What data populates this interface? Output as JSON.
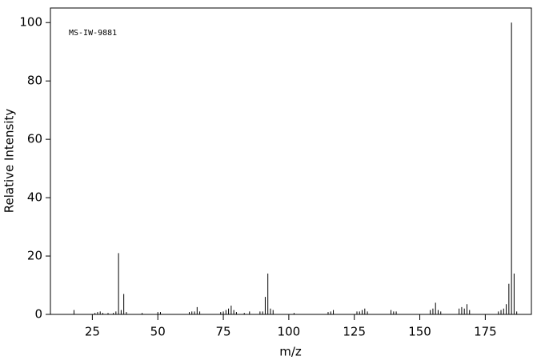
{
  "chart_data": {
    "type": "stick",
    "annotation": "MS-IW-9881",
    "xlabel": "m/z",
    "ylabel": "Relative Intensity",
    "xlim": [
      9,
      192.6
    ],
    "ylim": [
      0,
      105
    ],
    "xticks": [
      25,
      50,
      75,
      100,
      125,
      150,
      175
    ],
    "yticks": [
      0,
      20,
      40,
      60,
      80,
      100
    ],
    "color": "#000000",
    "x": [
      18,
      26,
      27,
      28,
      29,
      31,
      33,
      34,
      35,
      36,
      37,
      38,
      44,
      50,
      51,
      62,
      63,
      64,
      65,
      66,
      74,
      75,
      76,
      77,
      78,
      79,
      80,
      83,
      85,
      89,
      90,
      91,
      92,
      93,
      94,
      102,
      115,
      116,
      117,
      126,
      127,
      128,
      129,
      130,
      139,
      140,
      141,
      154,
      155,
      156,
      157,
      158,
      165,
      166,
      167,
      168,
      169,
      180,
      181,
      182,
      183,
      184,
      185,
      186,
      187
    ],
    "values": [
      1.5,
      0.5,
      0.8,
      1,
      0.5,
      0.5,
      0.5,
      1,
      21,
      1.5,
      7,
      0.8,
      0.5,
      0.8,
      0.8,
      0.8,
      1,
      1,
      2.5,
      1,
      0.8,
      1,
      1.5,
      2,
      3,
      1.5,
      0.8,
      0.5,
      1,
      1,
      1,
      6,
      14,
      2,
      1.5,
      0.5,
      0.8,
      1,
      1.5,
      1,
      1,
      1.5,
      2,
      1,
      1.5,
      1,
      1,
      1.5,
      2,
      4,
      1.5,
      1,
      2,
      2.5,
      2,
      3.5,
      1.5,
      1,
      1.5,
      2,
      3.5,
      10.5,
      100,
      14,
      1
    ]
  }
}
